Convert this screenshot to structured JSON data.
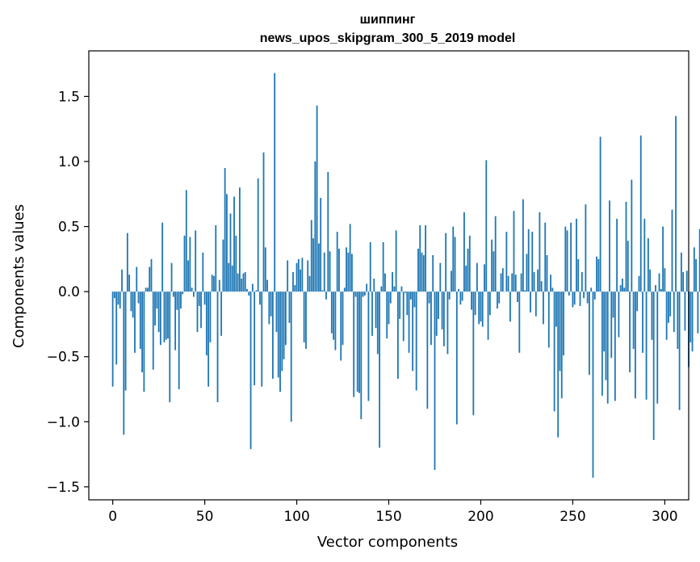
{
  "chart_data": {
    "type": "bar",
    "title": "шиппинг",
    "subtitle": "news_upos_skipgram_300_5_2019 model",
    "xlabel": "Vector components",
    "ylabel": "Components values",
    "xlim": [
      -13,
      313
    ],
    "ylim": [
      -1.6,
      1.85
    ],
    "xticks": [
      0,
      50,
      100,
      150,
      200,
      250,
      300
    ],
    "xtick_labels": [
      "0",
      "50",
      "100",
      "150",
      "200",
      "250",
      "300"
    ],
    "yticks": [
      -1.5,
      -1.0,
      -0.5,
      0.0,
      0.5,
      1.0,
      1.5
    ],
    "ytick_labels": [
      "−1.5",
      "−1.0",
      "−0.5",
      "0.0",
      "0.5",
      "1.0",
      "1.5"
    ],
    "bar_color": "#1f77b4",
    "values": [
      -0.73,
      -0.05,
      -0.56,
      -0.1,
      -0.13,
      0.17,
      -1.1,
      -0.76,
      0.45,
      0.13,
      -0.15,
      -0.2,
      -0.47,
      0.19,
      -0.09,
      -0.44,
      -0.62,
      -0.77,
      0.03,
      0.03,
      0.19,
      0.25,
      -0.6,
      -0.26,
      -0.13,
      -0.31,
      -0.41,
      0.53,
      -0.39,
      -0.37,
      -0.36,
      -0.85,
      0.22,
      -0.04,
      -0.45,
      -0.14,
      -0.75,
      -0.13,
      -0.02,
      0.43,
      0.78,
      0.24,
      0.42,
      0.03,
      -0.04,
      0.47,
      -0.31,
      -0.11,
      -0.28,
      0.3,
      -0.1,
      -0.49,
      -0.73,
      -0.39,
      0.13,
      0.12,
      0.51,
      -0.85,
      0.09,
      -0.34,
      0.4,
      0.95,
      0.75,
      0.22,
      0.6,
      0.2,
      0.73,
      0.43,
      0.14,
      0.8,
      0.1,
      0.14,
      0.15,
      0.02,
      -0.03,
      -1.21,
      0.06,
      -0.72,
      0.01,
      0.87,
      -0.1,
      -0.73,
      1.07,
      0.34,
      0.09,
      -0.25,
      -0.19,
      -0.67,
      1.68,
      -0.31,
      -0.66,
      -0.77,
      -0.61,
      -0.52,
      -0.41,
      0.24,
      -0.24,
      -1.0,
      0.15,
      0.05,
      0.22,
      0.25,
      0.17,
      0.26,
      -0.39,
      -0.44,
      0.24,
      0.12,
      0.55,
      0.41,
      1.0,
      1.43,
      0.37,
      0.72,
      0.01,
      0.3,
      -0.06,
      0.92,
      0.31,
      -0.32,
      -0.37,
      -0.45,
      0.46,
      0.33,
      -0.53,
      -0.41,
      0.03,
      0.34,
      0.3,
      0.52,
      0.29,
      -0.81,
      -0.04,
      -0.77,
      -0.78,
      -0.98,
      -0.04,
      -0.03,
      0.06,
      -0.84,
      0.38,
      -0.34,
      0.1,
      -0.28,
      -0.48,
      -1.2,
      0.04,
      0.38,
      0.14,
      -0.36,
      -0.25,
      -0.09,
      0.15,
      0.04,
      0.47,
      -0.67,
      -0.21,
      0.04,
      -0.38,
      -0.01,
      -0.18,
      -0.47,
      -0.06,
      -0.61,
      -0.12,
      -0.76,
      0.33,
      0.51,
      0.3,
      0.28,
      0.51,
      -0.9,
      -0.09,
      -0.41,
      0.28,
      -1.37,
      -0.34,
      -0.21,
      0.22,
      -0.29,
      -0.42,
      0.45,
      -0.48,
      -0.06,
      0.16,
      0.5,
      0.42,
      -1.02,
      0.02,
      -0.1,
      -0.07,
      0.61,
      0.2,
      0.33,
      0.43,
      -0.14,
      -0.95,
      -0.18,
      0.22,
      -0.25,
      -0.23,
      -0.27,
      0.21,
      1.01,
      -0.37,
      -0.18,
      0.4,
      0.31,
      0.58,
      -0.13,
      -0.09,
      0.14,
      0.18,
      0.0,
      0.46,
      0.12,
      -0.23,
      0.14,
      0.62,
      0.13,
      -0.08,
      -0.47,
      0.14,
      0.71,
      0.01,
      0.29,
      0.48,
      -0.16,
      0.46,
      0.15,
      -0.19,
      0.17,
      0.61,
      0.08,
      -0.25,
      0.53,
      0.28,
      -0.43,
      0.13,
      0.03,
      -0.92,
      -0.27,
      -1.12,
      -0.61,
      -0.82,
      -0.49,
      0.5,
      0.47,
      -0.03,
      0.53,
      -0.12,
      -0.1,
      0.56,
      0.25,
      -0.11,
      0.15,
      -0.05,
      0.67,
      -0.09,
      -0.64,
      0.03,
      -1.43,
      -0.06,
      0.27,
      0.25,
      1.19,
      -0.8,
      -0.46,
      -0.68,
      -0.86,
      0.7,
      -0.51,
      -0.2,
      -0.84,
      0.56,
      -0.35,
      0.05,
      0.1,
      0.03,
      0.69,
      0.39,
      -0.62,
      0.86,
      -0.44,
      -0.82,
      -0.15,
      0.12,
      1.2,
      -0.47,
      0.56,
      -0.83,
      0.41,
      0.17,
      -0.37,
      -1.14,
      0.05,
      -0.86,
      0.14,
      0.02,
      0.5,
      0.18,
      -0.37,
      -0.24,
      -0.19,
      0.63,
      -0.31,
      1.35,
      -0.44,
      -0.91,
      0.3,
      0.15,
      -0.3,
      0.16,
      -0.58,
      -0.39,
      -0.46,
      0.34,
      0.25,
      -0.32,
      0.48,
      -0.51,
      -0.31,
      0.14,
      -0.03,
      0.3,
      0.09,
      -0.13,
      -0.28,
      0.26,
      0.52,
      0.2,
      0.17,
      0.12,
      0.31,
      0.47,
      -0.46,
      -0.26,
      0.12,
      -0.64,
      0.43,
      -0.04,
      -0.71,
      0.78,
      0.25,
      -1.03,
      -0.79,
      0.2,
      0.21,
      -0.08,
      -0.09,
      -0.64,
      0.11,
      0.52,
      -0.66,
      -0.15,
      -0.34,
      0.52,
      -0.11,
      -0.55,
      -0.11,
      0.14,
      -0.44,
      -0.05,
      0.15,
      -0.09,
      0.27,
      -0.43,
      0.41,
      -0.06,
      -0.77,
      0.84,
      -0.24,
      0.14,
      0.02,
      1.48,
      0.12,
      -0.71,
      -0.59,
      0.17,
      0.21,
      -0.62,
      0.02,
      0.09,
      0.0,
      -0.96,
      -0.67,
      0.26,
      -0.44,
      1.42,
      -0.38,
      1.2,
      0.17,
      -0.33
    ]
  }
}
